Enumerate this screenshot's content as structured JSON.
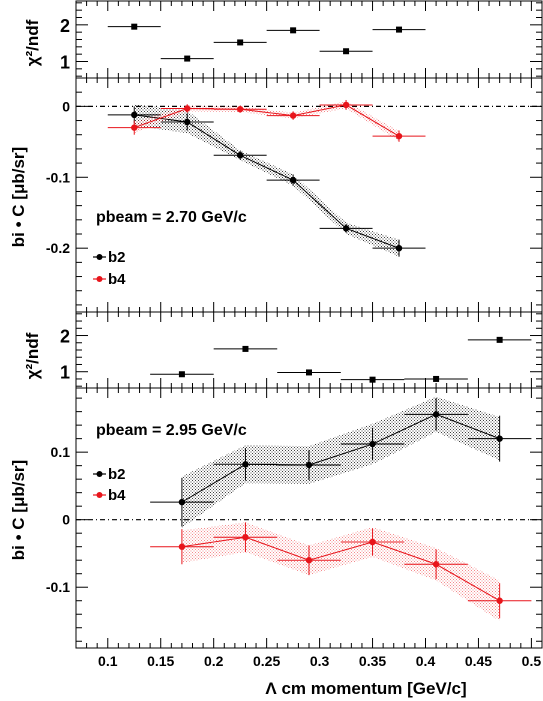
{
  "x_axis": {
    "label": "Λ cm momentum [GeV/c]",
    "range": [
      0.07,
      0.51
    ],
    "ticks": [
      "0.1",
      "0.15",
      "0.2",
      "0.25",
      "0.3",
      "0.35",
      "0.4",
      "0.45",
      "0.5"
    ]
  },
  "colors": {
    "b2": "#000000",
    "b4": "#e8151b"
  },
  "chart_data": [
    {
      "type": "scatter",
      "panel": "chi2-top",
      "ylabel": "χ²/ndf",
      "ylim": [
        0.55,
        2.65
      ],
      "yticks": [
        "1",
        "2"
      ],
      "series": [
        {
          "x": [
            0.125,
            0.175,
            0.225,
            0.275,
            0.325,
            0.375
          ],
          "xerr": [
            0.025,
            0.025,
            0.025,
            0.025,
            0.025,
            0.025
          ],
          "y": [
            1.95,
            1.08,
            1.52,
            1.85,
            1.28,
            1.87
          ]
        }
      ]
    },
    {
      "type": "line",
      "panel": "b-top",
      "ylabel": "bi • C [μb/sr]",
      "ylim": [
        -0.29,
        0.04
      ],
      "yticks": [
        "0",
        "-0.1",
        "-0.2"
      ],
      "annotation": "pbeam = 2.70 GeV/c",
      "zero_line": true,
      "series": [
        {
          "name": "b2",
          "x": [
            0.125,
            0.175,
            0.225,
            0.275,
            0.325,
            0.375
          ],
          "xerr": [
            0.025,
            0.025,
            0.025,
            0.025,
            0.025,
            0.025
          ],
          "y": [
            -0.012,
            -0.022,
            -0.069,
            -0.104,
            -0.172,
            -0.2
          ],
          "yerr": [
            0.012,
            0.012,
            0.006,
            0.008,
            0.006,
            0.012
          ],
          "band": [
            0.015,
            0.016,
            0.007,
            0.008,
            0.008,
            0.012
          ]
        },
        {
          "name": "b4",
          "x": [
            0.125,
            0.175,
            0.225,
            0.275,
            0.325,
            0.375
          ],
          "xerr": [
            0.025,
            0.025,
            0.025,
            0.025,
            0.025,
            0.025
          ],
          "y": [
            -0.03,
            -0.003,
            -0.004,
            -0.013,
            0.002,
            -0.042
          ],
          "yerr": [
            0.01,
            0.006,
            0.005,
            0.006,
            0.007,
            0.008
          ],
          "band": [
            0.008,
            0.004,
            0.004,
            0.004,
            0.005,
            0.007
          ]
        }
      ]
    },
    {
      "type": "scatter",
      "panel": "chi2-bottom",
      "ylabel": "χ²/ndf",
      "ylim": [
        0.55,
        2.65
      ],
      "yticks": [
        "1",
        "2"
      ],
      "series": [
        {
          "x": [
            0.17,
            0.23,
            0.29,
            0.35,
            0.41,
            0.47
          ],
          "xerr": [
            0.03,
            0.03,
            0.03,
            0.03,
            0.03,
            0.03
          ],
          "y": [
            0.93,
            1.63,
            0.98,
            0.78,
            0.8,
            1.88
          ]
        }
      ]
    },
    {
      "type": "line",
      "panel": "b-bottom",
      "ylabel": "bi • C [μb/sr]",
      "ylim": [
        -0.19,
        0.195
      ],
      "yticks": [
        "0.1",
        "0",
        "-0.1"
      ],
      "annotation": "pbeam = 2.95 GeV/c",
      "zero_line": true,
      "series": [
        {
          "name": "b2",
          "x": [
            0.17,
            0.23,
            0.29,
            0.35,
            0.41,
            0.47
          ],
          "xerr": [
            0.03,
            0.03,
            0.03,
            0.03,
            0.03,
            0.03
          ],
          "y": [
            0.026,
            0.082,
            0.081,
            0.112,
            0.156,
            0.12
          ],
          "yerr": [
            0.036,
            0.024,
            0.022,
            0.024,
            0.024,
            0.034
          ],
          "band": [
            0.038,
            0.028,
            0.028,
            0.03,
            0.026,
            0.032
          ]
        },
        {
          "name": "b4",
          "x": [
            0.17,
            0.23,
            0.29,
            0.35,
            0.41,
            0.47
          ],
          "xerr": [
            0.03,
            0.03,
            0.03,
            0.03,
            0.03,
            0.03
          ],
          "y": [
            -0.04,
            -0.026,
            -0.06,
            -0.033,
            -0.066,
            -0.12
          ],
          "yerr": [
            0.026,
            0.022,
            0.022,
            0.02,
            0.022,
            0.026
          ],
          "band": [
            0.024,
            0.022,
            0.022,
            0.022,
            0.024,
            0.03
          ]
        }
      ]
    }
  ]
}
